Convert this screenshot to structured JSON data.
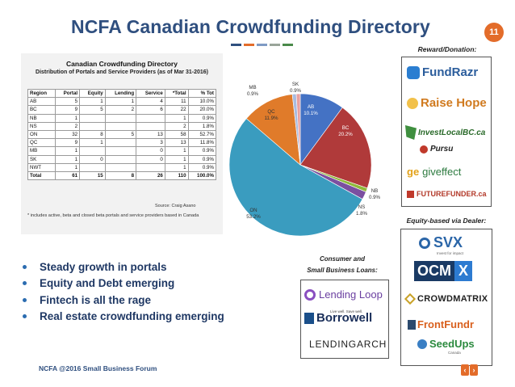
{
  "slide": {
    "title": "NCFA Canadian Crowdfunding Directory",
    "page_number": "11",
    "footer": "NCFA @2016 Small Business Forum",
    "nav_prev": "‹",
    "nav_next": "›",
    "accent_color": "#e36c2a",
    "title_color": "#2f4f7f"
  },
  "figure": {
    "title": "Canadian Crowdfunding Directory",
    "subtitle": "Distribution of Portals and Service Providers (as of Mar 31-2016)",
    "source": "Source:  Craig Asano",
    "note": "* includes active, beta and closed beta portals and service providers based in Canada",
    "headers": [
      "Region",
      "Portal",
      "Equity",
      "Lending",
      "Service",
      "*Total",
      "% Tot"
    ],
    "rows": [
      [
        "AB",
        "5",
        "1",
        "1",
        "4",
        "11",
        "10.0%"
      ],
      [
        "BC",
        "9",
        "5",
        "2",
        "6",
        "22",
        "20.0%"
      ],
      [
        "NB",
        "1",
        "",
        "",
        "",
        "1",
        "0.9%"
      ],
      [
        "NS",
        "2",
        "",
        "",
        "",
        "2",
        "1.8%"
      ],
      [
        "ON",
        "32",
        "8",
        "5",
        "13",
        "58",
        "52.7%"
      ],
      [
        "QC",
        "9",
        "1",
        "",
        "3",
        "13",
        "11.8%"
      ],
      [
        "MB",
        "1",
        "",
        "",
        "0",
        "1",
        "0.9%"
      ],
      [
        "SK",
        "1",
        "0",
        "",
        "0",
        "1",
        "0.9%"
      ],
      [
        "NWT",
        "1",
        "",
        "",
        "",
        "1",
        "0.9%"
      ]
    ],
    "total_row": [
      "Total",
      "61",
      "15",
      "8",
      "26",
      "110",
      "100.0%"
    ]
  },
  "chart_data": {
    "type": "pie",
    "slices": [
      {
        "region": "AB",
        "pct_label": "10.1%",
        "value": 10.1,
        "color": "#4472c4"
      },
      {
        "region": "BC",
        "pct_label": "20.2%",
        "value": 20.2,
        "color": "#b03a3a"
      },
      {
        "region": "NB",
        "pct_label": "0.9%",
        "value": 0.9,
        "color": "#8fb93a"
      },
      {
        "region": "NS",
        "pct_label": "1.8%",
        "value": 1.8,
        "color": "#7b4fa0"
      },
      {
        "region": "ON",
        "pct_label": "53.2%",
        "value": 53.2,
        "color": "#3a9cbf"
      },
      {
        "region": "QC",
        "pct_label": "11.9%",
        "value": 11.9,
        "color": "#e07b2a"
      },
      {
        "region": "MB",
        "pct_label": "0.9%",
        "value": 0.9,
        "color": "#a9bce0"
      },
      {
        "region": "SK",
        "pct_label": "0.9%",
        "value": 0.9,
        "color": "#e8a0a0"
      }
    ]
  },
  "bullets": [
    "Steady growth in portals",
    "Equity and Debt emerging",
    "Fintech is all the rage",
    "Real estate crowdfunding emerging"
  ],
  "reward": {
    "caption": "Reward/Donation:",
    "logos": [
      "FundRazr",
      "Raise Hope",
      "InvestLocalBC.ca",
      "Pursu",
      "giveffect",
      "FUTUREFUNDER.ca"
    ]
  },
  "equity": {
    "caption": "Equity-based via Dealer:",
    "logos": [
      "SVX",
      "Invest for impact",
      "OCM",
      "X",
      "CROWDMATRIX",
      "FrontFundr",
      "SeedUps",
      "Canada"
    ]
  },
  "loans": {
    "caption_line1": "Consumer and",
    "caption_line2": "Small Business Loans:",
    "logos": [
      "Lending Loop",
      "Borrowell",
      "Live well. Save well.",
      "LENDINGARCH"
    ]
  }
}
